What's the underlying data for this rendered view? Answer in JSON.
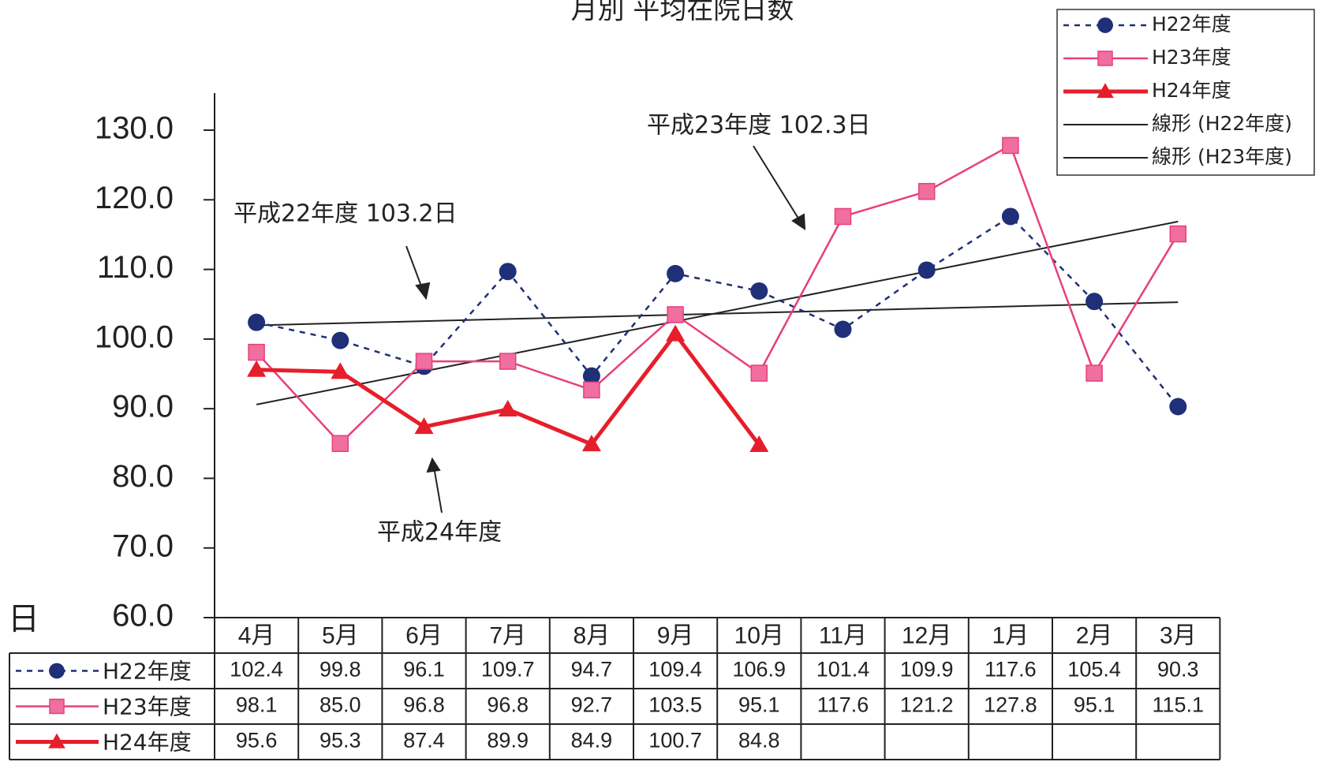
{
  "chart_data": {
    "type": "line",
    "title": "月別 平均在院日数",
    "y_label": "日",
    "annotations": [
      "平成22年度 103.2日",
      "平成23年度 102.3日",
      "平成24年度"
    ],
    "categories": [
      "4月",
      "5月",
      "6月",
      "7月",
      "8月",
      "9月",
      "10月",
      "11月",
      "12月",
      "1月",
      "2月",
      "3月"
    ],
    "series": [
      {
        "name": "H22年度",
        "color": "#1f2f78",
        "marker": "circle",
        "dash": true,
        "trend_name": "線形 (H22年度)",
        "values": [
          102.4,
          99.8,
          96.1,
          109.7,
          94.7,
          109.4,
          106.9,
          101.4,
          109.9,
          117.6,
          105.4,
          90.3
        ],
        "value_labels": [
          "102.4",
          "99.8",
          "96.1",
          "109.7",
          "94.7",
          "109.4",
          "106.9",
          "101.4",
          "109.9",
          "117.6",
          "105.4",
          "90.3"
        ]
      },
      {
        "name": "H23年度",
        "color": "#e8407a",
        "marker": "square",
        "dash": false,
        "trend_name": "線形 (H23年度)",
        "values": [
          98.1,
          85.0,
          96.8,
          96.8,
          92.7,
          103.5,
          95.1,
          117.6,
          121.2,
          127.8,
          95.1,
          115.1
        ],
        "value_labels": [
          "98.1",
          "85.0",
          "96.8",
          "96.8",
          "92.7",
          "103.5",
          "95.1",
          "117.6",
          "121.2",
          "127.8",
          "95.1",
          "115.1"
        ]
      },
      {
        "name": "H24年度",
        "color": "#e61e2b",
        "marker": "triangle",
        "dash": false,
        "values": [
          95.6,
          95.3,
          87.4,
          89.9,
          84.9,
          100.7,
          84.8,
          null,
          null,
          null,
          null,
          null
        ],
        "value_labels": [
          "95.6",
          "95.3",
          "87.4",
          "89.9",
          "84.9",
          "100.7",
          "84.8",
          null,
          null,
          null,
          null,
          null
        ]
      }
    ],
    "ylim": [
      60,
      130
    ],
    "yticks": [
      {
        "value": 60,
        "label": "60.0"
      },
      {
        "value": 70,
        "label": "70.0"
      },
      {
        "value": 80,
        "label": "80.0"
      },
      {
        "value": 90,
        "label": "90.0"
      },
      {
        "value": 100,
        "label": "100.0"
      },
      {
        "value": 110,
        "label": "110.0"
      },
      {
        "value": 120,
        "label": "120.0"
      },
      {
        "value": 130,
        "label": "130.0"
      }
    ],
    "grid": false,
    "trend_color": "#222222",
    "legend": "top-right"
  }
}
